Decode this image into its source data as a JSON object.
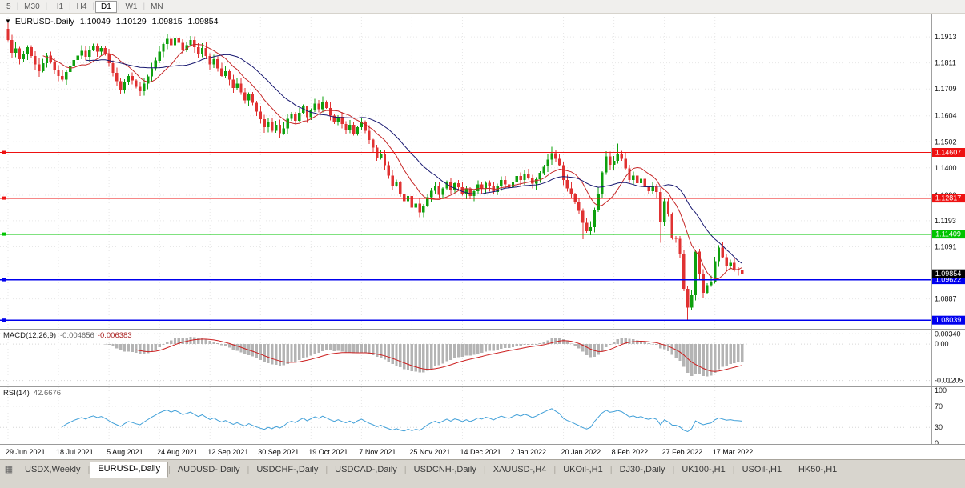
{
  "toolbar": {
    "timeframes": [
      "5",
      "M30",
      "H1",
      "H4",
      "D1",
      "W1",
      "MN"
    ],
    "active": "D1"
  },
  "symbol_overlay": {
    "symbol": "EURUSD-.Daily",
    "open": "1.10049",
    "high": "1.10129",
    "low": "1.09815",
    "close": "1.09854"
  },
  "main_chart": {
    "y_axis_labels": [
      {
        "label": "1.1913",
        "price": 1.1913
      },
      {
        "label": "1.1811",
        "price": 1.1811
      },
      {
        "label": "1.1709",
        "price": 1.1709
      },
      {
        "label": "1.1604",
        "price": 1.1604
      },
      {
        "label": "1.1502",
        "price": 1.1502
      },
      {
        "label": "1.1400",
        "price": 1.14
      },
      {
        "label": "1.1293",
        "price": 1.1293
      },
      {
        "label": "1.1193",
        "price": 1.1193
      },
      {
        "label": "1.1091",
        "price": 1.1091
      },
      {
        "label": "1.0887",
        "price": 1.0887
      }
    ],
    "hlines": [
      {
        "label": "1.14607",
        "price": 1.14607,
        "color": "#ee1111"
      },
      {
        "label": "1.12817",
        "price": 1.12817,
        "color": "#ee1111"
      },
      {
        "label": "1.11409",
        "price": 1.11409,
        "color": "#00c400"
      },
      {
        "label": "1.09622",
        "price": 1.09622,
        "color": "#0000ee"
      },
      {
        "label": "1.08039",
        "price": 1.08039,
        "color": "#0000ee"
      }
    ],
    "price_badge": {
      "label": "1.09854",
      "price": 1.09854,
      "color": "#000000"
    }
  },
  "macd_panel": {
    "title": "MACD(12,26,9)",
    "value_main": "-0.004656",
    "value_signal": "-0.006383",
    "axis_labels": [
      {
        "label": "0.00340",
        "value": 0.0034
      },
      {
        "label": "0.00",
        "value": 0
      },
      {
        "label": "-0.01205",
        "value": -0.01205
      }
    ],
    "range": {
      "max": 0.0048,
      "min": -0.014
    },
    "colors": {
      "histogram": "#b4b4b4",
      "signal": "#cc2020"
    }
  },
  "rsi_panel": {
    "title": "RSI(14)",
    "value": "42.6676",
    "axis_labels": [
      {
        "label": "100",
        "value": 100
      },
      {
        "label": "70",
        "value": 70
      },
      {
        "label": "30",
        "value": 30
      },
      {
        "label": "0",
        "value": 0
      }
    ],
    "color": "#3f9fd8"
  },
  "timeline": {
    "labels": [
      {
        "i": 0,
        "t": "29 Jun 2021"
      },
      {
        "i": 13,
        "t": "18 Jul 2021"
      },
      {
        "i": 26,
        "t": "5 Aug 2021"
      },
      {
        "i": 39,
        "t": "24 Aug 2021"
      },
      {
        "i": 52,
        "t": "12 Sep 2021"
      },
      {
        "i": 65,
        "t": "30 Sep 2021"
      },
      {
        "i": 78,
        "t": "19 Oct 2021"
      },
      {
        "i": 91,
        "t": "7 Nov 2021"
      },
      {
        "i": 104,
        "t": "25 Nov 2021"
      },
      {
        "i": 117,
        "t": "14 Dec 2021"
      },
      {
        "i": 130,
        "t": "2 Jan 2022"
      },
      {
        "i": 143,
        "t": "20 Jan 2022"
      },
      {
        "i": 156,
        "t": "8 Feb 2022"
      },
      {
        "i": 169,
        "t": "27 Feb 2022"
      },
      {
        "i": 182,
        "t": "17 Mar 2022"
      }
    ]
  },
  "tabs": {
    "items": [
      "USDX,Weekly",
      "EURUSD-,Daily",
      "AUDUSD-,Daily",
      "USDCHF-,Daily",
      "USDCAD-,Daily",
      "USDCNH-,Daily",
      "XAUUSD-,H4",
      "UKOil-,H1",
      "DJ30-,Daily",
      "UK100-,H1",
      "USOil-,H1",
      "HK50-,H1"
    ],
    "active_index": 1
  },
  "chart_data": {
    "type": "candlestick",
    "symbol": "EURUSD-",
    "timeframe": "Daily",
    "title": "EURUSD-.Daily",
    "price_axis": {
      "max": 1.2004,
      "min": 1.077
    },
    "first_open": 1.1945,
    "closes": [
      1.19,
      1.185,
      1.1868,
      1.1825,
      1.1845,
      1.1872,
      1.1838,
      1.1805,
      1.1778,
      1.181,
      1.184,
      1.1815,
      1.1782,
      1.176,
      1.1745,
      1.1775,
      1.1798,
      1.1822,
      1.184,
      1.1858,
      1.1835,
      1.1862,
      1.1878,
      1.1855,
      1.187,
      1.1845,
      1.181,
      1.1772,
      1.174,
      1.1705,
      1.1735,
      1.176,
      1.1742,
      1.1718,
      1.17,
      1.173,
      1.1758,
      1.179,
      1.182,
      1.1855,
      1.1885,
      1.1905,
      1.188,
      1.191,
      1.189,
      1.1862,
      1.188,
      1.19,
      1.1872,
      1.1845,
      1.187,
      1.1838,
      1.1805,
      1.1825,
      1.179,
      1.176,
      1.1778,
      1.1745,
      1.1712,
      1.173,
      1.1695,
      1.1665,
      1.169,
      1.1655,
      1.162,
      1.159,
      1.156,
      1.158,
      1.1545,
      1.1568,
      1.1535,
      1.1555,
      1.1592,
      1.161,
      1.1585,
      1.1615,
      1.164,
      1.1598,
      1.1625,
      1.1652,
      1.163,
      1.166,
      1.1635,
      1.1605,
      1.158,
      1.16,
      1.1572,
      1.1548,
      1.1568,
      1.1532,
      1.156,
      1.158,
      1.1545,
      1.151,
      1.148,
      1.144,
      1.1455,
      1.141,
      1.137,
      1.133,
      1.1345,
      1.13,
      1.127,
      1.129,
      1.1245,
      1.126,
      1.1225,
      1.125,
      1.1285,
      1.131,
      1.133,
      1.1295,
      1.132,
      1.1345,
      1.1312,
      1.134,
      1.1325,
      1.1298,
      1.132,
      1.129,
      1.1308,
      1.1335,
      1.1318,
      1.1342,
      1.1328,
      1.1305,
      1.133,
      1.1352,
      1.1335,
      1.1322,
      1.1345,
      1.1368,
      1.1352,
      1.1375,
      1.136,
      1.1338,
      1.1355,
      1.138,
      1.1405,
      1.1432,
      1.1458,
      1.1435,
      1.141,
      1.1352,
      1.132,
      1.1298,
      1.1265,
      1.1232,
      1.1185,
      1.1152,
      1.1168,
      1.1235,
      1.13,
      1.1382,
      1.1445,
      1.1412,
      1.1428,
      1.1452,
      1.1435,
      1.1398,
      1.1352,
      1.137,
      1.134,
      1.1358,
      1.1325,
      1.1308,
      1.133,
      1.1305,
      1.119,
      1.127,
      1.1218,
      1.1125,
      1.1122,
      1.1065,
      1.0926,
      1.0853,
      1.0902,
      1.1073,
      1.0984,
      1.0911,
      1.094,
      1.0955,
      1.1035,
      1.1088,
      1.1051,
      1.1015,
      1.1028,
      1.1004,
      1.0998,
      1.09854
    ],
    "wick_overrides": [
      {
        "i": 43,
        "high": 1.1916
      },
      {
        "i": 140,
        "high": 1.1483
      },
      {
        "i": 157,
        "high": 1.1495
      },
      {
        "i": 148,
        "low": 1.1121
      },
      {
        "i": 168,
        "low": 1.1106
      },
      {
        "i": 175,
        "low": 1.0806
      }
    ],
    "indicators": {
      "ma_fast": {
        "type": "SMA",
        "period": 10,
        "color": "#c62828"
      },
      "ma_slow": {
        "type": "SMA",
        "period": 21,
        "color": "#181870"
      },
      "macd": {
        "fast": 12,
        "slow": 26,
        "signal": 9
      },
      "rsi": {
        "period": 14
      }
    },
    "colors": {
      "bull": "#0ea00e",
      "bear": "#e03232",
      "grid": "#e7e7e7",
      "axis_line": "#a0a0a0"
    }
  }
}
